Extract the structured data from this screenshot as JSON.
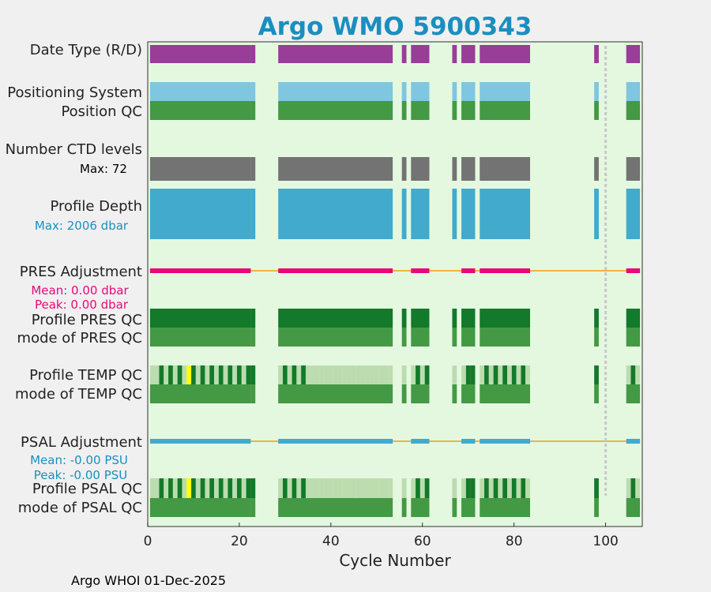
{
  "chart_data": {
    "type": "heatmap",
    "title": "Argo WMO 5900343",
    "xlabel": "Cycle Number",
    "xlim": [
      0,
      108
    ],
    "xticks": [
      0,
      20,
      40,
      60,
      80,
      100
    ],
    "footer": "Argo WHOI 01-Dec-2025",
    "vline_x": 100,
    "cycle_groups": [
      [
        1,
        22
      ],
      [
        23,
        23
      ],
      [
        29,
        53
      ],
      [
        56,
        56
      ],
      [
        58,
        61
      ],
      [
        67,
        67
      ],
      [
        69,
        71
      ],
      [
        73,
        83
      ],
      [
        98,
        98
      ],
      [
        105,
        107
      ]
    ],
    "pres_adj_segments": [
      [
        1,
        22
      ],
      [
        29,
        53
      ],
      [
        58,
        61
      ],
      [
        69,
        71
      ],
      [
        73,
        83
      ],
      [
        105,
        107
      ]
    ],
    "temp_qc_bad_cycles": [
      9
    ],
    "temp_qc_light_cycles": [
      1,
      2,
      4,
      6,
      8,
      11,
      13,
      15,
      17,
      19,
      21,
      29,
      31,
      33,
      35,
      36,
      37,
      38,
      39,
      40,
      41,
      42,
      43,
      44,
      45,
      46,
      47,
      48,
      49,
      50,
      51,
      52,
      53,
      56,
      58,
      60,
      67,
      69,
      73,
      75,
      77,
      79,
      81,
      83,
      105,
      107
    ],
    "labels": {
      "date_type": "Date Type (R/D)",
      "positioning_system": "Positioning System",
      "position_qc": "Position QC",
      "num_ctd_levels": "Number CTD levels",
      "ctd_max": "Max: 72",
      "profile_depth": "Profile Depth",
      "depth_max": "Max: 2006 dbar",
      "pres_adjustment": "PRES Adjustment",
      "pres_mean": "Mean: 0.00 dbar",
      "pres_peak": "Peak: 0.00 dbar",
      "profile_pres_qc": "Profile PRES QC",
      "mode_pres_qc": "mode of PRES QC",
      "profile_temp_qc": "Profile TEMP QC",
      "mode_temp_qc": "mode of TEMP QC",
      "psal_adjustment": "PSAL Adjustment",
      "psal_mean": "Mean: -0.00 PSU",
      "psal_peak": "Peak: -0.00 PSU",
      "profile_psal_qc": "Profile PSAL QC",
      "mode_psal_qc": "mode of PSAL QC"
    },
    "colors": {
      "title": "#1a8fbf",
      "plot_bg": "#e4f8e0",
      "figure_bg": "#f0f0f0",
      "date_type": "#993d99",
      "positioning": "#7fc6e0",
      "qc_good": "#449944",
      "ctd": "#737373",
      "depth": "#42aacc",
      "pres_adj": "#e8087a",
      "adj_line": "#f0b440",
      "qc_dark": "#127a2a",
      "qc_light": "#bcdcae",
      "qc_bad": "#ffff00",
      "psal_adj": "#42aacc",
      "vline": "#c8c8c8",
      "pink_text": "#e8087a",
      "blue_text": "#1a8fbf"
    }
  }
}
